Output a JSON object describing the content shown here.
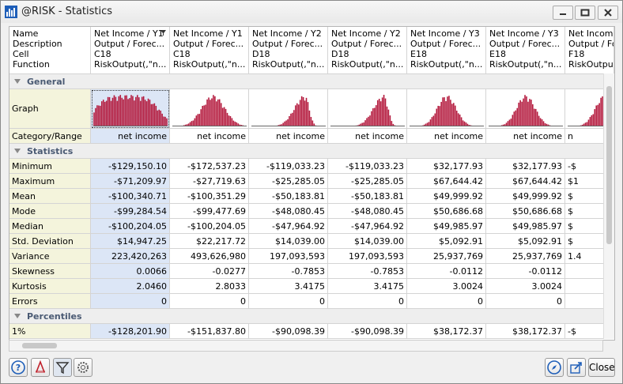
{
  "window": {
    "title": "@RISK - Statistics"
  },
  "grid": {
    "header_labels": [
      "Name",
      "Description",
      "Cell",
      "Function"
    ],
    "columns": [
      {
        "name": "Net Income / Y1",
        "description": "Output / Forec...",
        "cell": "C18",
        "function": "RiskOutput(,\"n..."
      },
      {
        "name": "Net Income / Y1",
        "description": "Output / Forec...",
        "cell": "C18",
        "function": "RiskOutput(,\"n..."
      },
      {
        "name": "Net Income / Y2",
        "description": "Output / Forec...",
        "cell": "D18",
        "function": "RiskOutput(,\"n..."
      },
      {
        "name": "Net Income / Y2",
        "description": "Output / Forec...",
        "cell": "D18",
        "function": "RiskOutput(,\"n..."
      },
      {
        "name": "Net Income / Y3",
        "description": "Output / Forec...",
        "cell": "E18",
        "function": "RiskOutput(,\"n..."
      },
      {
        "name": "Net Income / Y3",
        "description": "Output / Forec...",
        "cell": "E18",
        "function": "RiskOutput(,\"n..."
      },
      {
        "name": "Net Income /",
        "description": "Output / Fore",
        "cell": "F18",
        "function": "RiskOutput(,\"n"
      }
    ],
    "rows": [
      {
        "section": "General"
      },
      {
        "label": "Graph"
      },
      {
        "label": "Category/Range",
        "values": [
          "net income",
          "net income",
          "net income",
          "net income",
          "net income",
          "net income",
          "n"
        ]
      },
      {
        "section": "Statistics"
      },
      {
        "label": "Minimum",
        "values": [
          "-$129,150.10",
          "-$172,537.23",
          "-$119,033.23",
          "-$119,033.23",
          "$32,177.93",
          "$32,177.93",
          "-$"
        ]
      },
      {
        "label": "Maximum",
        "values": [
          "-$71,209.97",
          "-$27,719.63",
          "-$25,285.05",
          "-$25,285.05",
          "$67,644.42",
          "$67,644.42",
          "$1"
        ]
      },
      {
        "label": "Mean",
        "values": [
          "-$100,340.71",
          "-$100,351.29",
          "-$50,183.81",
          "-$50,183.81",
          "$49,999.92",
          "$49,999.92",
          "$"
        ]
      },
      {
        "label": "Mode",
        "values": [
          "-$99,284.54",
          "-$99,477.69",
          "-$48,080.45",
          "-$48,080.45",
          "$50,686.68",
          "$50,686.68",
          "$"
        ]
      },
      {
        "label": "Median",
        "values": [
          "-$100,204.05",
          "-$100,204.05",
          "-$47,964.92",
          "-$47,964.92",
          "$49,985.97",
          "$49,985.97",
          "$"
        ]
      },
      {
        "label": "Std. Deviation",
        "values": [
          "$14,947.25",
          "$22,217.72",
          "$14,039.00",
          "$14,039.00",
          "$5,092.91",
          "$5,092.91",
          "$"
        ]
      },
      {
        "label": "Variance",
        "values": [
          "223,420,263",
          "493,626,980",
          "197,093,593",
          "197,093,593",
          "25,937,769",
          "25,937,769",
          "1.4"
        ]
      },
      {
        "label": "Skewness",
        "values": [
          "0.0066",
          "-0.0277",
          "-0.7853",
          "-0.7853",
          "-0.0112",
          "-0.0112",
          null
        ]
      },
      {
        "label": "Kurtosis",
        "values": [
          "2.0460",
          "2.8033",
          "3.4175",
          "3.4175",
          "3.0024",
          "3.0024",
          null
        ]
      },
      {
        "label": "Errors",
        "values": [
          "0",
          "0",
          "0",
          "0",
          "0",
          "0",
          null
        ]
      },
      {
        "section": "Percentiles"
      },
      {
        "label": "1%",
        "values": [
          "-$128,201.90",
          "-$151,837.80",
          "-$90,098.39",
          "-$90,098.39",
          "$38,172.37",
          "$38,172.37",
          "-$"
        ]
      }
    ]
  },
  "buttons": {
    "close": "Close"
  }
}
